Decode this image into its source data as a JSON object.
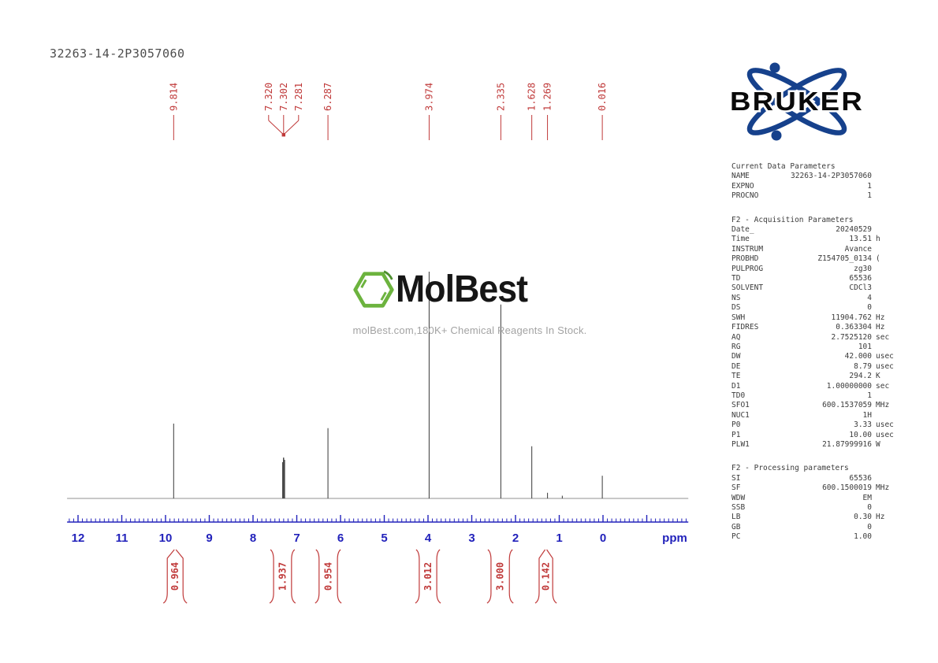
{
  "title": "32263-14-2P3057060",
  "colors": {
    "red": "#c03a3a",
    "blue": "#2222bb",
    "trace": "#4a4a4a",
    "baseline": "#909090",
    "param_text": "#3b3b3b",
    "title_text": "#4d4d4d",
    "bruker_blue": "#16418c",
    "molbest_green": "#6cb33e",
    "subtitle_gray": "#a3a3a3"
  },
  "watermark": {
    "name": "MolBest",
    "subtitle": "molBest.com,180K+ Chemical Reagents In Stock."
  },
  "bruker": {
    "label": "BRUKER"
  },
  "chart_data": {
    "type": "line",
    "title": "1H NMR spectrum",
    "xlabel": "ppm",
    "x_axis": {
      "tick_labels": [
        12,
        11,
        10,
        9,
        8,
        7,
        6,
        5,
        4,
        3,
        2,
        1,
        0
      ],
      "unit_label": "ppm",
      "min": -1.95,
      "max": 12.25,
      "minor_step": 0.1,
      "direction": "reversed"
    },
    "peaks": [
      {
        "ppm": 9.814,
        "rel_height": 0.33
      },
      {
        "ppm": 7.32,
        "rel_height": 0.16
      },
      {
        "ppm": 7.311,
        "rel_height": 0.15
      },
      {
        "ppm": 7.302,
        "rel_height": 0.18
      },
      {
        "ppm": 7.292,
        "rel_height": 0.16
      },
      {
        "ppm": 7.281,
        "rel_height": 0.17
      },
      {
        "ppm": 6.287,
        "rel_height": 0.31
      },
      {
        "ppm": 3.974,
        "rel_height": 1.0
      },
      {
        "ppm": 2.335,
        "rel_height": 0.855
      },
      {
        "ppm": 1.628,
        "rel_height": 0.23
      },
      {
        "ppm": 1.269,
        "rel_height": 0.025
      },
      {
        "ppm": 0.93,
        "rel_height": 0.012
      },
      {
        "ppm": 0.016,
        "rel_height": 0.1
      }
    ],
    "peak_label_groups": [
      [
        "9.814"
      ],
      [
        "7.320",
        "7.302",
        "7.281"
      ],
      [
        "6.287"
      ],
      [
        "3.974"
      ],
      [
        "2.335"
      ],
      [
        "1.628"
      ],
      [
        "1.269"
      ],
      [
        "0.016"
      ]
    ],
    "integrals": [
      {
        "value": "0.964",
        "from_ppm": 9.96,
        "to_ppm": 9.6
      },
      {
        "value": "1.937",
        "from_ppm": 7.53,
        "to_ppm": 7.12
      },
      {
        "value": "0.954",
        "from_ppm": 6.49,
        "to_ppm": 6.07
      },
      {
        "value": "3.012",
        "from_ppm": 4.2,
        "to_ppm": 3.8
      },
      {
        "value": "3.000",
        "from_ppm": 2.56,
        "to_ppm": 2.14
      },
      {
        "value": "0.142",
        "from_ppm": 1.46,
        "to_ppm": 1.15
      }
    ]
  },
  "parameters": {
    "sections": [
      {
        "heading": "Current Data Parameters",
        "rows": [
          [
            "NAME",
            "32263-14-2P3057060",
            ""
          ],
          [
            "EXPNO",
            "1",
            ""
          ],
          [
            "PROCNO",
            "1",
            ""
          ]
        ]
      },
      {
        "heading": "F2 - Acquisition Parameters",
        "rows": [
          [
            "Date_",
            "20240529",
            ""
          ],
          [
            "Time",
            "13.51",
            "h"
          ],
          [
            "INSTRUM",
            "Avance",
            ""
          ],
          [
            "PROBHD",
            "Z154705_0134",
            "("
          ],
          [
            "PULPROG",
            "zg30",
            ""
          ],
          [
            "TD",
            "65536",
            ""
          ],
          [
            "SOLVENT",
            "CDCl3",
            ""
          ],
          [
            "NS",
            "4",
            ""
          ],
          [
            "DS",
            "0",
            ""
          ],
          [
            "SWH",
            "11904.762",
            "Hz"
          ],
          [
            "FIDRES",
            "0.363304",
            "Hz"
          ],
          [
            "AQ",
            "2.7525120",
            "sec"
          ],
          [
            "RG",
            "101",
            ""
          ],
          [
            "DW",
            "42.000",
            "usec"
          ],
          [
            "DE",
            "8.79",
            "usec"
          ],
          [
            "TE",
            "294.2",
            "K"
          ],
          [
            "D1",
            "1.00000000",
            "sec"
          ],
          [
            "TD0",
            "1",
            ""
          ],
          [
            "SFO1",
            "600.1537059",
            "MHz"
          ],
          [
            "NUC1",
            "1H",
            ""
          ],
          [
            "P0",
            "3.33",
            "usec"
          ],
          [
            "P1",
            "10.00",
            "usec"
          ],
          [
            "PLW1",
            "21.87999916",
            "W"
          ]
        ]
      },
      {
        "heading": "F2 - Processing parameters",
        "rows": [
          [
            "SI",
            "65536",
            ""
          ],
          [
            "SF",
            "600.1500019",
            "MHz"
          ],
          [
            "WDW",
            "EM",
            ""
          ],
          [
            "SSB",
            "0",
            ""
          ],
          [
            "LB",
            "0.30",
            "Hz"
          ],
          [
            "GB",
            "0",
            ""
          ],
          [
            "PC",
            "1.00",
            ""
          ]
        ]
      }
    ]
  }
}
